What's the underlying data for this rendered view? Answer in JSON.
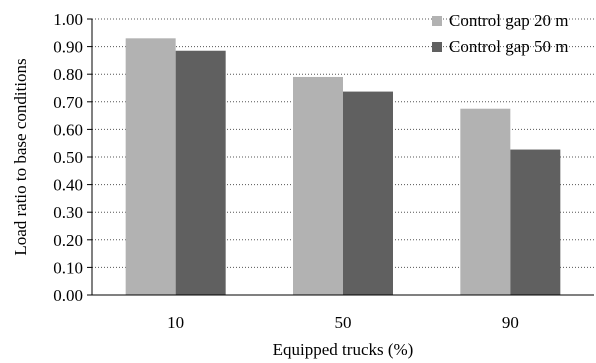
{
  "chart_data": {
    "type": "bar",
    "categories": [
      "10",
      "50",
      "90"
    ],
    "series": [
      {
        "name": "Control gap 20 m",
        "color": "#b2b2b2",
        "values": [
          0.93,
          0.79,
          0.675
        ]
      },
      {
        "name": "Control gap 50 m",
        "color": "#606060",
        "values": [
          0.885,
          0.737,
          0.527
        ]
      }
    ],
    "title": "",
    "xlabel": "Equipped trucks (%)",
    "ylabel": "Load ratio to base conditions",
    "ylim": [
      0,
      1.0
    ],
    "ytick_step": 0.1,
    "ytick_labels": [
      "0.00",
      "0.10",
      "0.20",
      "0.30",
      "0.40",
      "0.50",
      "0.60",
      "0.70",
      "0.80",
      "0.90",
      "1.00"
    ],
    "grid": "horizontal-dotted",
    "legend_position": "top-right"
  }
}
